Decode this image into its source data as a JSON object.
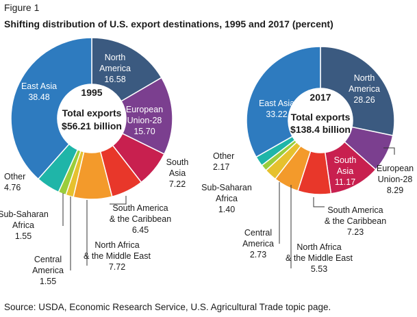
{
  "figure": {
    "label": "Figure 1",
    "title": "Shifting distribution of U.S. export destinations, 1995 and 2017 (percent)",
    "source": "Source: USDA, Economic Research Service, U.S. Agricultural Trade topic page."
  },
  "chart_data": [
    {
      "type": "pie",
      "variant": "donut",
      "year": "1995",
      "center_total_label": "Total exports",
      "center_total_value": "$56.21 billion",
      "slices": [
        {
          "key": "north_america",
          "label_lines": [
            "North",
            "America"
          ],
          "value": 16.58,
          "value_text": "16.58",
          "color": "#3b5a80"
        },
        {
          "key": "eu28",
          "label_lines": [
            "European",
            "Union-28"
          ],
          "value": 15.7,
          "value_text": "15.70",
          "color": "#7b3f8f"
        },
        {
          "key": "south_asia",
          "label_lines": [
            "South",
            "Asia"
          ],
          "value": 7.22,
          "value_text": "7.22",
          "color": "#c8204f"
        },
        {
          "key": "south_america",
          "label_lines": [
            "South America",
            "& the Caribbean"
          ],
          "value": 6.45,
          "value_text": "6.45",
          "color": "#e8372a"
        },
        {
          "key": "north_africa",
          "label_lines": [
            "North Africa",
            "& the Middle East"
          ],
          "value": 7.72,
          "value_text": "7.72",
          "color": "#f39a2b"
        },
        {
          "key": "central_america",
          "label_lines": [
            "Central",
            "America"
          ],
          "value": 1.55,
          "value_text": "1.55",
          "color": "#e6c12e"
        },
        {
          "key": "sub_saharan",
          "label_lines": [
            "Sub-Saharan",
            "Africa"
          ],
          "value": 1.55,
          "value_text": "1.55",
          "color": "#9acd3c"
        },
        {
          "key": "other",
          "label_lines": [
            "Other"
          ],
          "value": 4.76,
          "value_text": "4.76",
          "color": "#1fb5a8"
        },
        {
          "key": "east_asia",
          "label_lines": [
            "East Asia"
          ],
          "value": 38.48,
          "value_text": "38.48",
          "color": "#2e7bbf"
        }
      ]
    },
    {
      "type": "pie",
      "variant": "donut",
      "year": "2017",
      "center_total_label": "Total exports",
      "center_total_value": "$138.4 billion",
      "slices": [
        {
          "key": "north_america",
          "label_lines": [
            "North",
            "America"
          ],
          "value": 28.26,
          "value_text": "28.26",
          "color": "#3b5a80"
        },
        {
          "key": "eu28",
          "label_lines": [
            "European",
            "Union-28"
          ],
          "value": 8.29,
          "value_text": "8.29",
          "color": "#7b3f8f"
        },
        {
          "key": "south_asia",
          "label_lines": [
            "South",
            "Asia"
          ],
          "value": 11.17,
          "value_text": "11.17",
          "color": "#c8204f"
        },
        {
          "key": "south_america",
          "label_lines": [
            "South America",
            "& the Caribbean"
          ],
          "value": 7.23,
          "value_text": "7.23",
          "color": "#e8372a"
        },
        {
          "key": "north_africa",
          "label_lines": [
            "North Africa",
            "& the Middle East"
          ],
          "value": 5.53,
          "value_text": "5.53",
          "color": "#f39a2b"
        },
        {
          "key": "central_america",
          "label_lines": [
            "Central",
            "America"
          ],
          "value": 2.73,
          "value_text": "2.73",
          "color": "#e6c12e"
        },
        {
          "key": "sub_saharan",
          "label_lines": [
            "Sub-Saharan",
            "Africa"
          ],
          "value": 1.4,
          "value_text": "1.40",
          "color": "#9acd3c"
        },
        {
          "key": "other",
          "label_lines": [
            "Other"
          ],
          "value": 2.17,
          "value_text": "2.17",
          "color": "#1fb5a8"
        },
        {
          "key": "east_asia",
          "label_lines": [
            "East Asia"
          ],
          "value": 33.22,
          "value_text": "33.22",
          "color": "#2e7bbf"
        }
      ]
    }
  ]
}
